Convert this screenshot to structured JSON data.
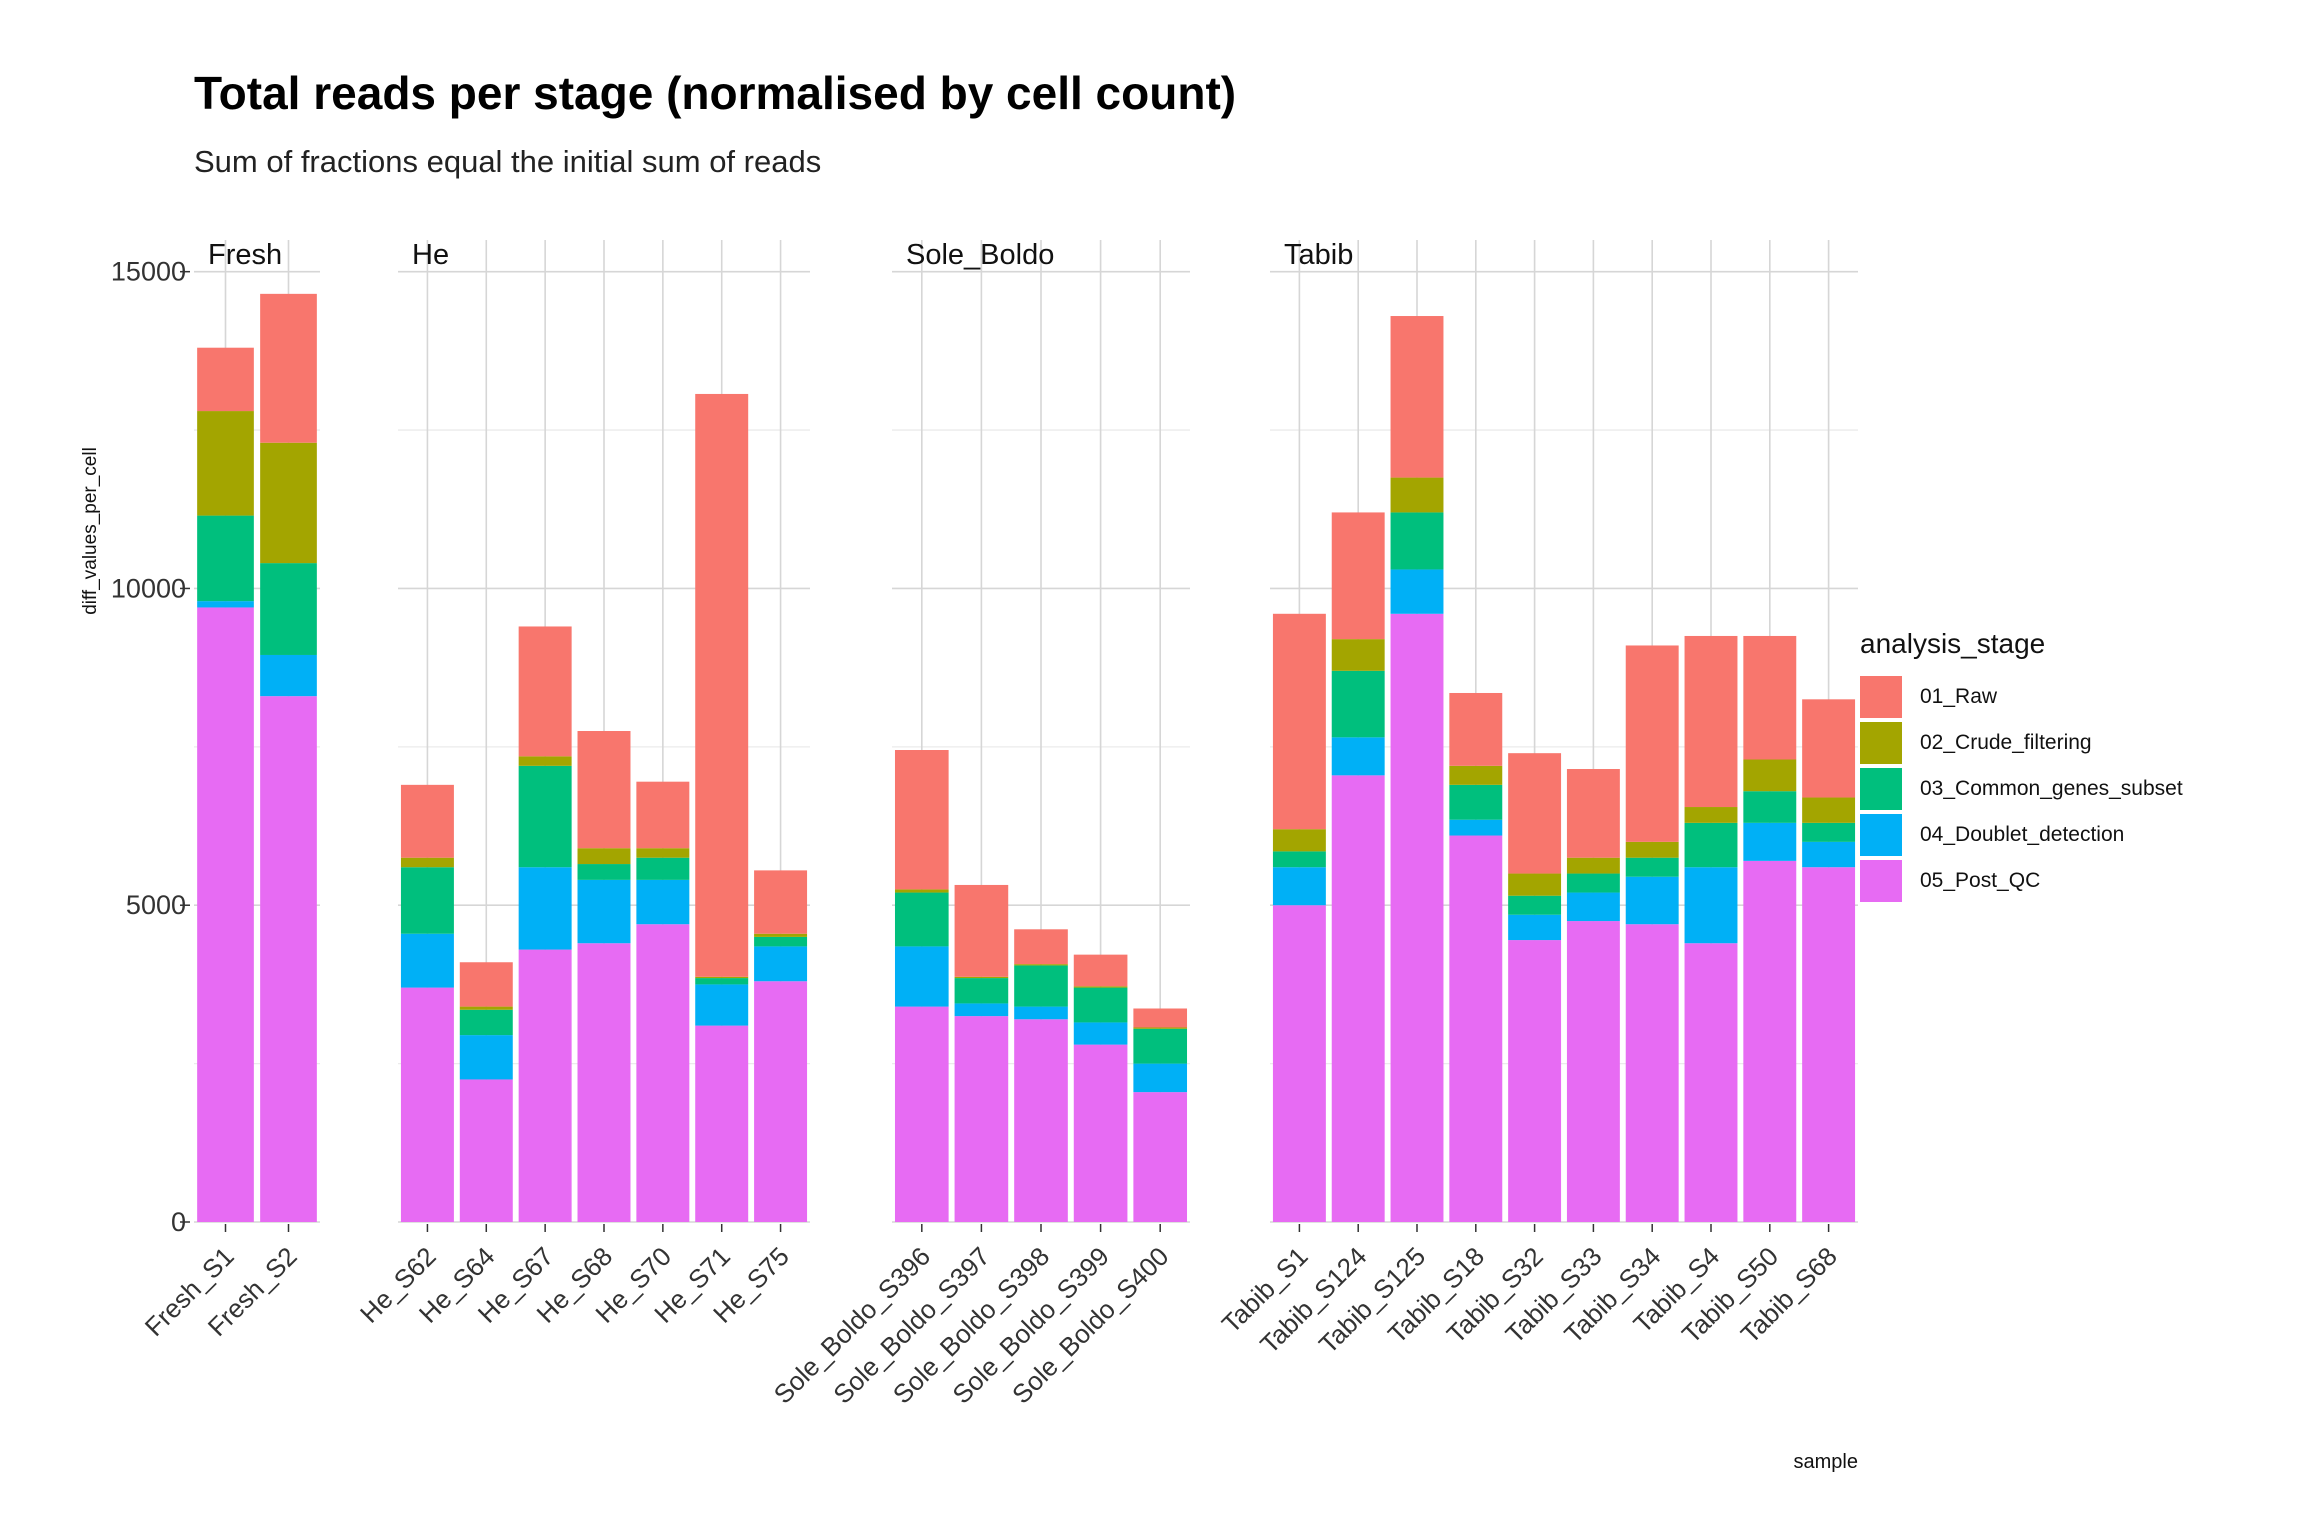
{
  "chart_data": {
    "type": "bar",
    "stacked": true,
    "title": "Total reads per stage (normalised by cell count)",
    "subtitle": "Sum of fractions equal the initial sum of reads",
    "xlabel": "sample",
    "ylabel": "diff_values_per_cell",
    "ylim": [
      0,
      15500
    ],
    "yticks": [
      0,
      5000,
      10000,
      15000
    ],
    "ytick_labels": [
      "0",
      "5000",
      "10000",
      "15000"
    ],
    "grid": true,
    "legend": {
      "title": "analysis_stage",
      "position": "right",
      "entries": [
        "01_Raw",
        "02_Crude_filtering",
        "03_Common_genes_subset",
        "04_Doublet_detection",
        "05_Post_QC"
      ]
    },
    "colors": [
      "#F8766D",
      "#A3A500",
      "#00BF7D",
      "#00B0F6",
      "#E76BF3"
    ],
    "panels": [
      {
        "name": "Fresh",
        "categories": [
          "Fresh_S1",
          "Fresh_S2"
        ],
        "values": [
          [
            1000,
            1650,
            1350,
            100,
            9700
          ],
          [
            2350,
            1900,
            1450,
            650,
            8300
          ]
        ]
      },
      {
        "name": "He",
        "categories": [
          "He_S62",
          "He_S64",
          "He_S67",
          "He_S68",
          "He_S70",
          "He_S71",
          "He_S75"
        ],
        "values": [
          [
            1150,
            150,
            1050,
            850,
            3700
          ],
          [
            700,
            50,
            400,
            700,
            2250
          ],
          [
            2050,
            150,
            1600,
            1300,
            4300
          ],
          [
            1850,
            250,
            250,
            1000,
            4400
          ],
          [
            1050,
            150,
            350,
            700,
            4700
          ],
          [
            9200,
            20,
            100,
            650,
            3100
          ],
          [
            1000,
            50,
            150,
            550,
            3800
          ]
        ]
      },
      {
        "name": "Sole_Boldo",
        "categories": [
          "Sole_Boldo_S396",
          "Sole_Boldo_S397",
          "Sole_Boldo_S398",
          "Sole_Boldo_S399",
          "Sole_Boldo_S400"
        ],
        "values": [
          [
            2200,
            50,
            850,
            950,
            3400
          ],
          [
            1450,
            20,
            400,
            200,
            3250
          ],
          [
            550,
            20,
            650,
            200,
            3200
          ],
          [
            500,
            20,
            550,
            350,
            2800
          ],
          [
            300,
            20,
            550,
            450,
            2050
          ]
        ]
      },
      {
        "name": "Tabib",
        "categories": [
          "Tabib_S1",
          "Tabib_S124",
          "Tabib_S125",
          "Tabib_S18",
          "Tabib_S32",
          "Tabib_S33",
          "Tabib_S34",
          "Tabib_S4",
          "Tabib_S50",
          "Tabib_S68"
        ],
        "values": [
          [
            3400,
            350,
            250,
            600,
            5000
          ],
          [
            2000,
            500,
            1050,
            600,
            7050
          ],
          [
            2550,
            550,
            900,
            700,
            9600
          ],
          [
            1150,
            300,
            550,
            250,
            6100
          ],
          [
            1900,
            350,
            300,
            400,
            4450
          ],
          [
            1400,
            250,
            300,
            450,
            4750
          ],
          [
            3100,
            250,
            300,
            750,
            4700
          ],
          [
            2700,
            250,
            700,
            1200,
            4400
          ],
          [
            1950,
            500,
            500,
            600,
            5700
          ],
          [
            1550,
            400,
            300,
            400,
            5600
          ]
        ]
      }
    ]
  }
}
